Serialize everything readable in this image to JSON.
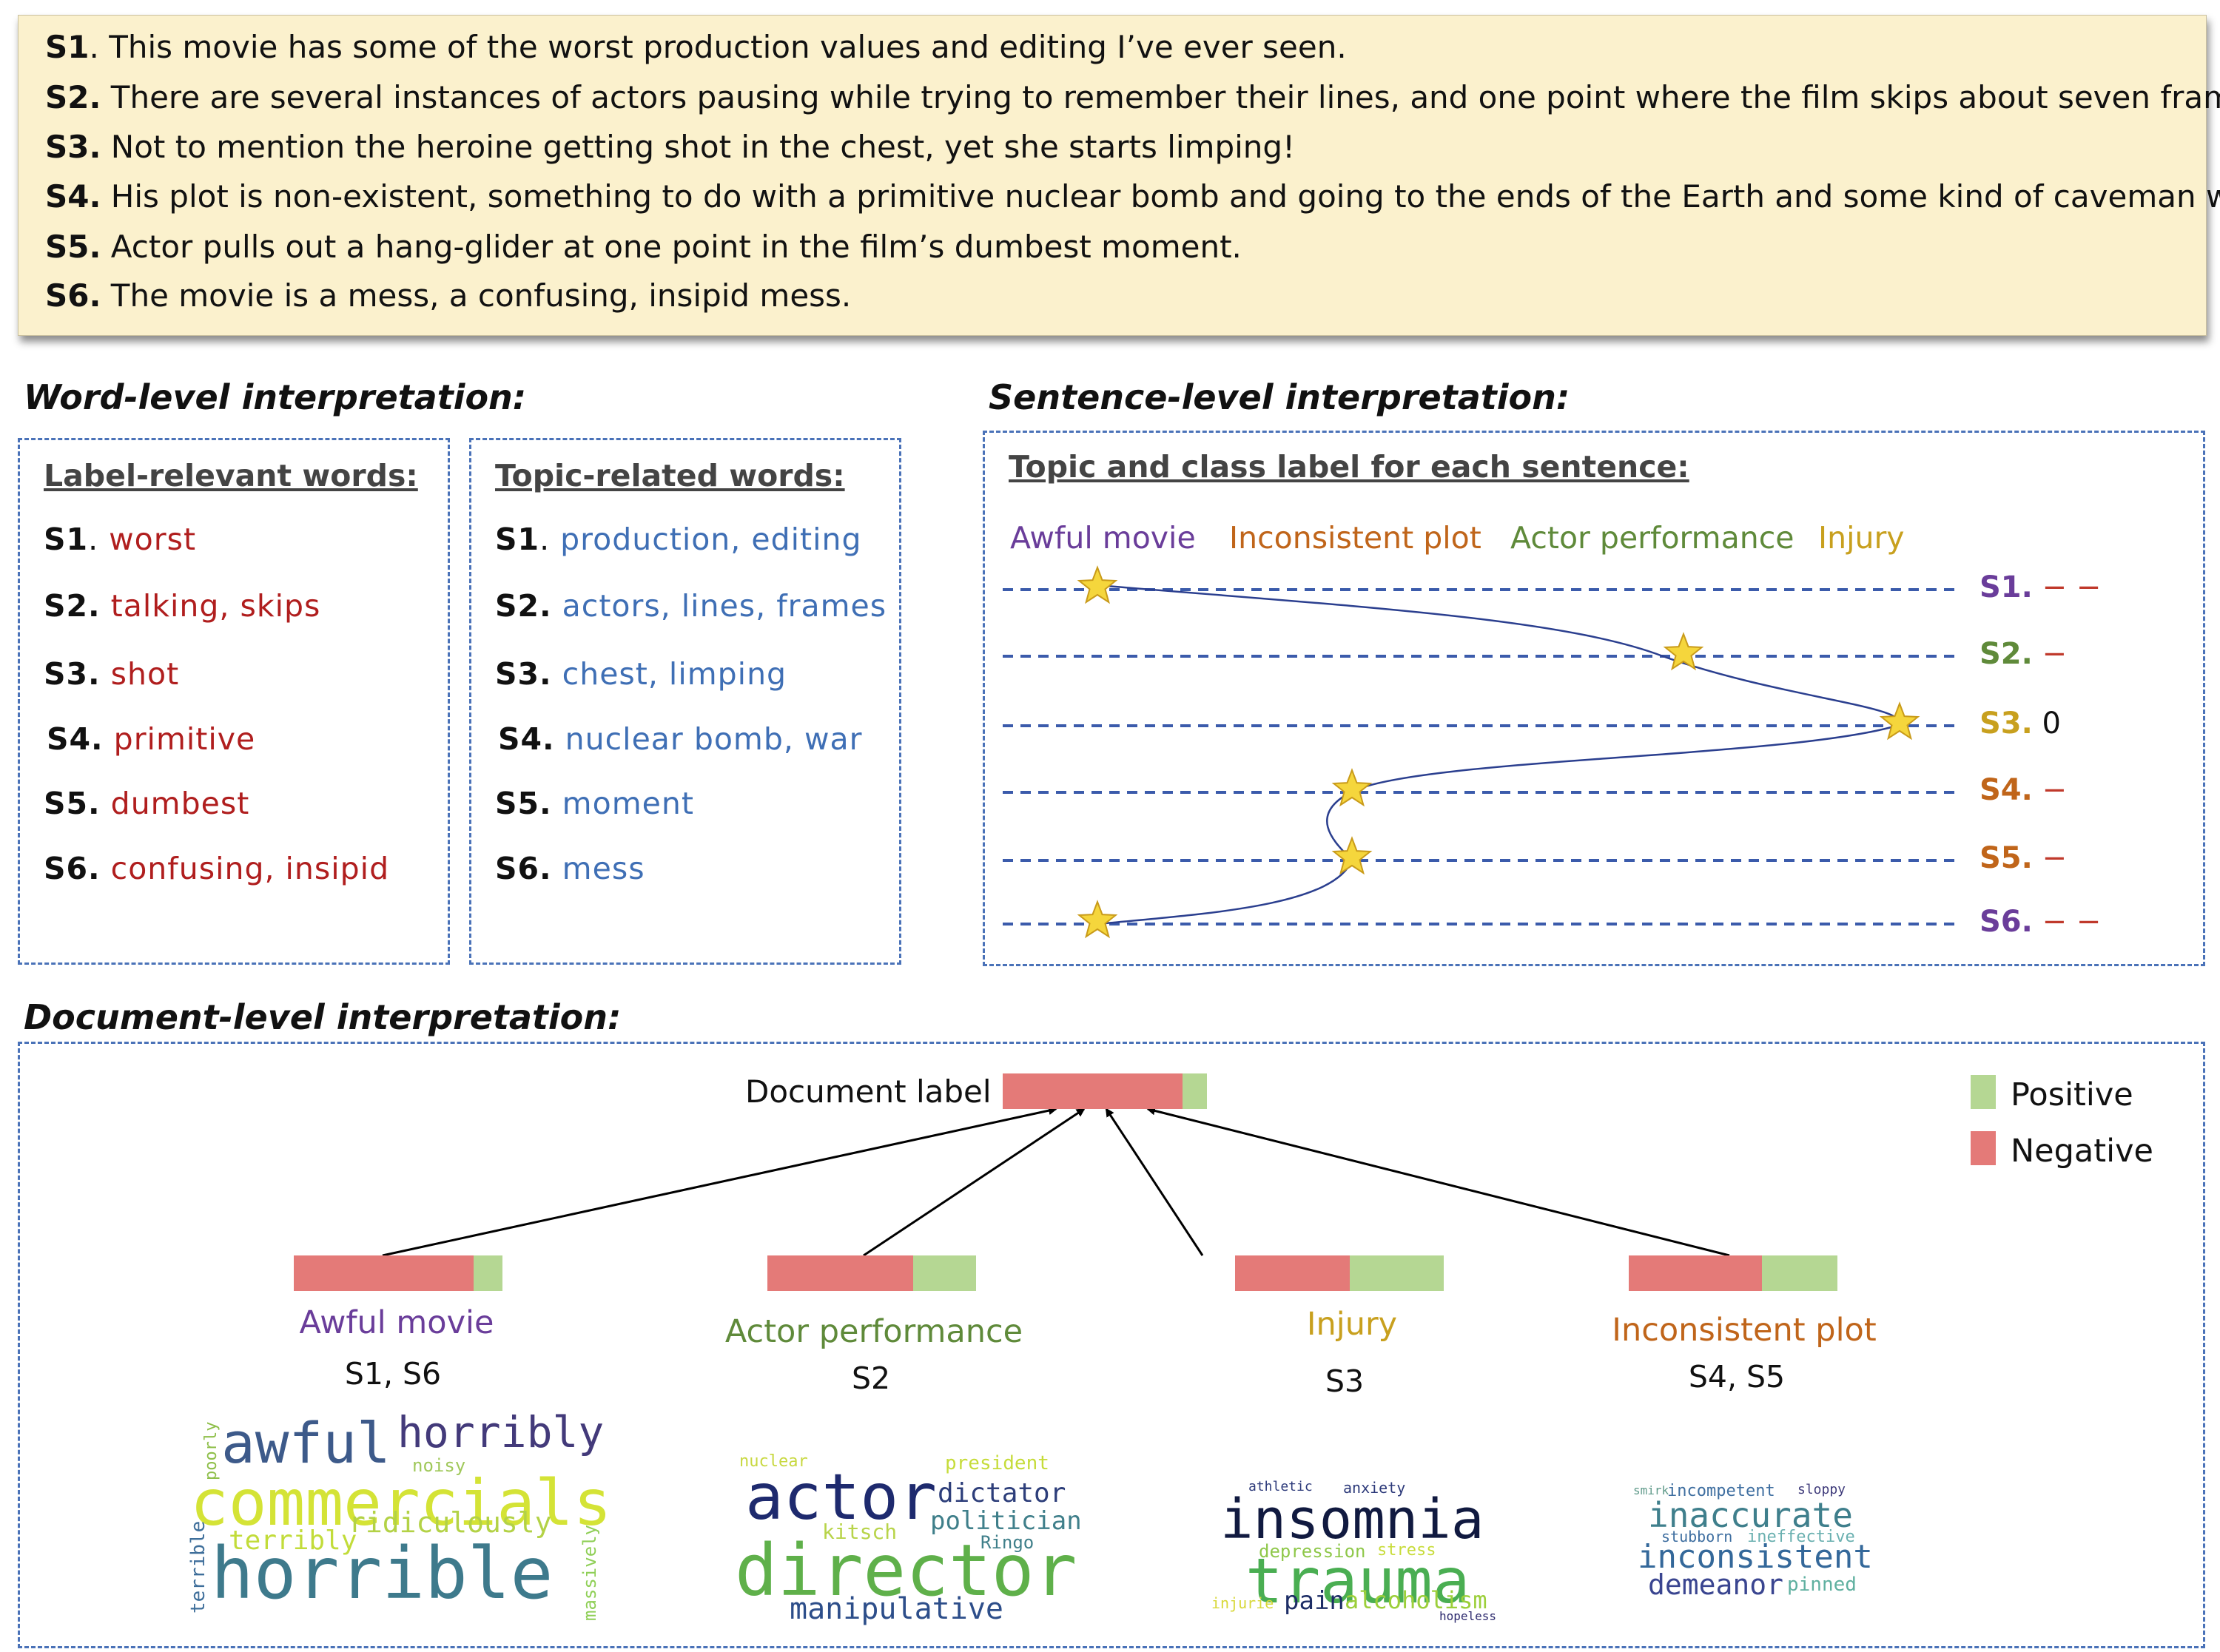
{
  "sentences": [
    {
      "id": "S1",
      "sep": ".",
      "text": " This movie has some of the worst production values and editing I’ve ever seen."
    },
    {
      "id": "S2",
      "sep": ".",
      "text": " There are several instances of actors pausing while trying to remember their lines,  and one point where the film skips about seven frames."
    },
    {
      "id": "S3",
      "sep": ".",
      "text": " Not to mention the heroine getting shot in the chest, yet she starts limping!"
    },
    {
      "id": "S4",
      "sep": ".",
      "text": " His plot is non-existent, something to do with a primitive nuclear bomb and going to the ends of the Earth and some kind of caveman war."
    },
    {
      "id": "S5",
      "sep": ".",
      "text": " Actor pulls out a hang-glider at one point in the film’s dumbest moment."
    },
    {
      "id": "S6",
      "sep": ".",
      "text": " The movie is a mess, a confusing, insipid mess."
    }
  ],
  "word_level": {
    "title": "Word-level interpretation:",
    "label_relevant": {
      "heading": "Label-relevant words:",
      "rows": [
        {
          "id": "S1",
          "sep": ".",
          "words": " worst"
        },
        {
          "id": "S2.",
          "sep": "",
          "words": " talking, skips"
        },
        {
          "id": "S3.",
          "sep": "",
          "words": " shot"
        },
        {
          "id": "S4.",
          "sep": "",
          "words": " primitive"
        },
        {
          "id": "S5.",
          "sep": "",
          "words": " dumbest"
        },
        {
          "id": "S6.",
          "sep": "",
          "words": " confusing, insipid"
        }
      ]
    },
    "topic_related": {
      "heading": "Topic-related words:",
      "rows": [
        {
          "id": "S1",
          "sep": ".",
          "words": " production, editing"
        },
        {
          "id": "S2.",
          "sep": "",
          "words": " actors, lines, frames"
        },
        {
          "id": "S3.",
          "sep": "",
          "words": " chest, limping"
        },
        {
          "id": "S4.",
          "sep": "",
          "words": " nuclear bomb, war"
        },
        {
          "id": "S5.",
          "sep": "",
          "words": " moment"
        },
        {
          "id": "S6.",
          "sep": "",
          "words": " mess"
        }
      ]
    }
  },
  "sentence_level": {
    "title": "Sentence-level interpretation:",
    "heading": "Topic and class label for each sentence:",
    "topics": [
      {
        "name": "Awful movie",
        "color": "#6a3d9a"
      },
      {
        "name": "Inconsistent plot",
        "color": "#c0651a"
      },
      {
        "name": "Actor performance",
        "color": "#5f8a3a"
      },
      {
        "name": "Injury",
        "color": "#c8a01e"
      }
    ],
    "rows": [
      {
        "id": "S1",
        "sep": ".",
        "label": " − −",
        "color": "#6a3d9a",
        "label_color": "#c0392b",
        "topic_index": 0
      },
      {
        "id": "S2.",
        "sep": "",
        "label": " −",
        "color": "#5f8a3a",
        "label_color": "#c0392b",
        "topic_index": 2
      },
      {
        "id": "S3.",
        "sep": "",
        "label": " 0",
        "color": "#c8a01e",
        "label_color": "#111111",
        "topic_index": 3
      },
      {
        "id": "S4.",
        "sep": "",
        "label": " −",
        "color": "#c0651a",
        "label_color": "#c0392b",
        "topic_index": 1
      },
      {
        "id": "S5.",
        "sep": "",
        "label": " −",
        "color": "#c0651a",
        "label_color": "#c0392b",
        "topic_index": 1
      },
      {
        "id": "S6.",
        "sep": "",
        "label": " − −",
        "color": "#6a3d9a",
        "label_color": "#c0392b",
        "topic_index": 0
      }
    ]
  },
  "document_level": {
    "title": "Document-level interpretation:",
    "doc_label_text": "Document label",
    "doc_bar": {
      "negative": 0.88,
      "positive": 0.12
    },
    "legend": [
      {
        "name": "Positive",
        "color": "#b5d793"
      },
      {
        "name": "Negative",
        "color": "#e47a78"
      }
    ],
    "topics": [
      {
        "name": "Awful movie",
        "color": "#6a3d9a",
        "sentences": "S1, S6",
        "negative": 0.86,
        "positive": 0.14
      },
      {
        "name": "Actor performance",
        "color": "#5f8a3a",
        "sentences": "S2",
        "negative": 0.7,
        "positive": 0.3
      },
      {
        "name": "Injury",
        "color": "#c8a01e",
        "sentences": "S3",
        "negative": 0.55,
        "positive": 0.45
      },
      {
        "name": "Inconsistent plot",
        "color": "#c0651a",
        "sentences": "S4, S5",
        "negative": 0.64,
        "positive": 0.36
      }
    ],
    "wordclouds": [
      [
        "awful",
        "horribly",
        "noisy",
        "poorly",
        "commercials",
        "terribly",
        "ridiculously",
        "terrible",
        "horrible",
        "massively"
      ],
      [
        "nuclear",
        "president",
        "actor",
        "dictator",
        "politician",
        "kitsch",
        "Ringo",
        "director",
        "manipulative"
      ],
      [
        "athletic",
        "anxiety",
        "insomnia",
        "depression",
        "stress",
        "trauma",
        "injurie",
        "pain",
        "alcoholism",
        "hopeless"
      ],
      [
        "smirk",
        "incompetent",
        "sloppy",
        "inaccurate",
        "stubborn",
        "ineffective",
        "inconsistent",
        "demeanor",
        "pinned"
      ]
    ]
  }
}
